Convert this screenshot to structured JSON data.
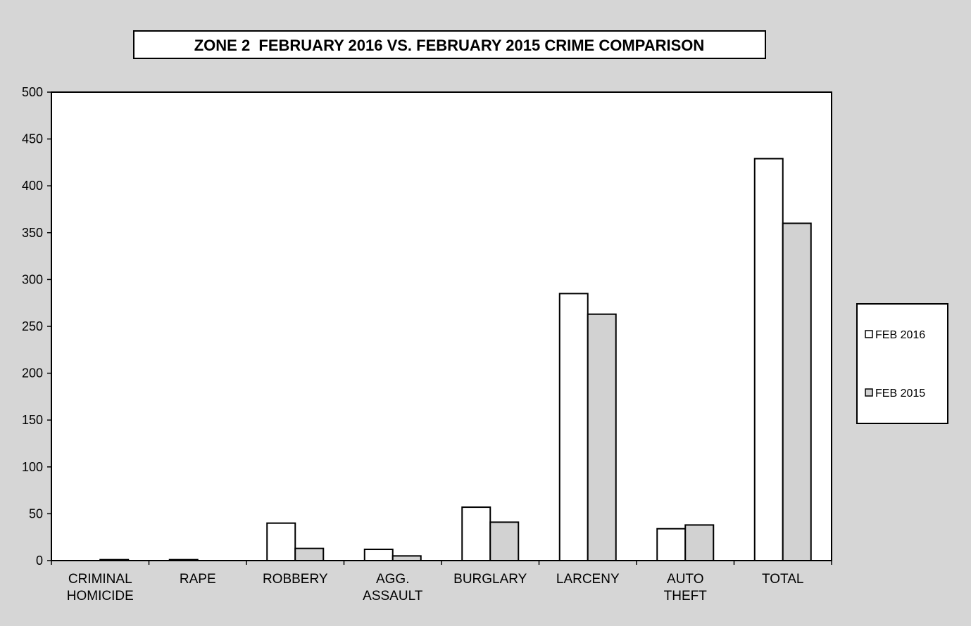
{
  "chart_data": {
    "type": "bar",
    "title": "ZONE 2  FEBRUARY 2016 VS. FEBRUARY 2015 CRIME COMPARISON",
    "categories": [
      [
        "CRIMINAL",
        "HOMICIDE"
      ],
      [
        "RAPE"
      ],
      [
        "ROBBERY"
      ],
      [
        "AGG.",
        "ASSAULT"
      ],
      [
        "BURGLARY"
      ],
      [
        "LARCENY"
      ],
      [
        "AUTO",
        "THEFT"
      ],
      [
        "TOTAL"
      ]
    ],
    "series": [
      {
        "name": "FEB 2016",
        "values": [
          0,
          1,
          40,
          12,
          57,
          285,
          34,
          429
        ]
      },
      {
        "name": "FEB 2015",
        "values": [
          1,
          0,
          13,
          5,
          41,
          263,
          38,
          360
        ]
      }
    ],
    "ylim": [
      0,
      500
    ],
    "yticks": [
      0,
      50,
      100,
      150,
      200,
      250,
      300,
      350,
      400,
      450,
      500
    ],
    "grid": false,
    "legend_position": "right",
    "colors": {
      "page": "#d6d6d6",
      "plot_area": "#ffffff",
      "feb_2016": "#ffffff",
      "feb_2015": "#d2d2d2",
      "stroke": "#000000"
    }
  }
}
